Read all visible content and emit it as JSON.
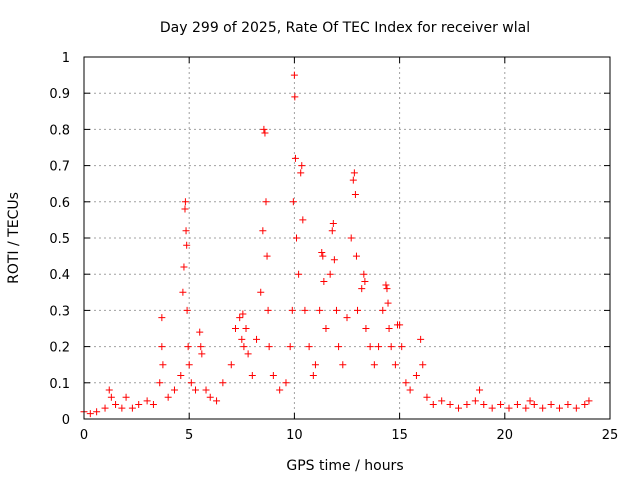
{
  "chart_data": {
    "type": "scatter",
    "title": "Day 299 of 2025, Rate Of TEC Index for receiver wlal",
    "xlabel": "GPS time / hours",
    "ylabel": "ROTI / TECUs",
    "xlim": [
      0,
      25
    ],
    "ylim": [
      0,
      1
    ],
    "xticks": [
      0,
      5,
      10,
      15,
      20,
      25
    ],
    "xtick_labels": [
      "0",
      "5",
      "10",
      "15",
      "20",
      "25"
    ],
    "yticks": [
      0,
      0.1,
      0.2,
      0.3,
      0.4,
      0.5,
      0.6,
      0.7,
      0.8,
      0.9,
      1
    ],
    "ytick_labels": [
      "0",
      "0.1",
      "0.2",
      "0.3",
      "0.4",
      "0.5",
      "0.6",
      "0.7",
      "0.8",
      "0.9",
      "1"
    ],
    "grid": true,
    "marker": "+",
    "color": "#ff0000",
    "series": [
      {
        "name": "ROTI",
        "x": [
          0.0,
          0.3,
          0.6,
          1.0,
          1.2,
          1.3,
          1.5,
          1.8,
          2.0,
          2.3,
          2.6,
          3.0,
          3.3,
          3.6,
          3.7,
          3.7,
          3.75,
          4.0,
          4.3,
          4.6,
          4.7,
          4.75,
          4.8,
          4.82,
          4.85,
          4.88,
          4.9,
          4.95,
          5.0,
          5.1,
          5.3,
          5.5,
          5.55,
          5.6,
          5.8,
          6.0,
          6.3,
          6.6,
          7.0,
          7.2,
          7.4,
          7.5,
          7.55,
          7.6,
          7.7,
          7.8,
          8.0,
          8.2,
          8.4,
          8.5,
          8.55,
          8.6,
          8.65,
          8.7,
          8.75,
          8.8,
          9.0,
          9.3,
          9.6,
          9.8,
          9.9,
          9.95,
          10.0,
          10.02,
          10.05,
          10.1,
          10.2,
          10.3,
          10.35,
          10.4,
          10.5,
          10.7,
          10.9,
          11.0,
          11.2,
          11.3,
          11.35,
          11.4,
          11.5,
          11.7,
          11.8,
          11.85,
          11.9,
          12.0,
          12.1,
          12.3,
          12.5,
          12.7,
          12.8,
          12.85,
          12.9,
          12.95,
          13.0,
          13.2,
          13.3,
          13.35,
          13.4,
          13.6,
          13.8,
          14.0,
          14.2,
          14.35,
          14.4,
          14.45,
          14.5,
          14.6,
          14.8,
          14.9,
          15.0,
          15.1,
          15.3,
          15.5,
          15.8,
          16.0,
          16.1,
          16.3,
          16.6,
          17.0,
          17.4,
          17.8,
          18.2,
          18.6,
          18.8,
          19.0,
          19.4,
          19.8,
          20.2,
          20.6,
          21.0,
          21.2,
          21.4,
          21.8,
          22.2,
          22.6,
          23.0,
          23.4,
          23.8,
          24.0
        ],
        "y": [
          0.02,
          0.015,
          0.02,
          0.03,
          0.08,
          0.06,
          0.04,
          0.03,
          0.06,
          0.03,
          0.04,
          0.05,
          0.04,
          0.1,
          0.28,
          0.2,
          0.15,
          0.06,
          0.08,
          0.12,
          0.35,
          0.42,
          0.58,
          0.6,
          0.52,
          0.48,
          0.3,
          0.2,
          0.15,
          0.1,
          0.08,
          0.24,
          0.2,
          0.18,
          0.08,
          0.06,
          0.05,
          0.1,
          0.15,
          0.25,
          0.28,
          0.22,
          0.29,
          0.2,
          0.25,
          0.18,
          0.12,
          0.22,
          0.35,
          0.52,
          0.8,
          0.79,
          0.6,
          0.45,
          0.3,
          0.2,
          0.12,
          0.08,
          0.1,
          0.2,
          0.3,
          0.6,
          0.95,
          0.89,
          0.72,
          0.5,
          0.4,
          0.68,
          0.7,
          0.55,
          0.3,
          0.2,
          0.12,
          0.15,
          0.3,
          0.46,
          0.45,
          0.38,
          0.25,
          0.4,
          0.52,
          0.54,
          0.44,
          0.3,
          0.2,
          0.15,
          0.28,
          0.5,
          0.66,
          0.68,
          0.62,
          0.45,
          0.3,
          0.36,
          0.4,
          0.38,
          0.25,
          0.2,
          0.15,
          0.2,
          0.3,
          0.37,
          0.36,
          0.32,
          0.25,
          0.2,
          0.15,
          0.26,
          0.26,
          0.2,
          0.1,
          0.08,
          0.12,
          0.22,
          0.15,
          0.06,
          0.04,
          0.05,
          0.04,
          0.03,
          0.04,
          0.05,
          0.08,
          0.04,
          0.03,
          0.04,
          0.03,
          0.04,
          0.03,
          0.05,
          0.04,
          0.03,
          0.04,
          0.03,
          0.04,
          0.03,
          0.04,
          0.05
        ]
      }
    ]
  }
}
